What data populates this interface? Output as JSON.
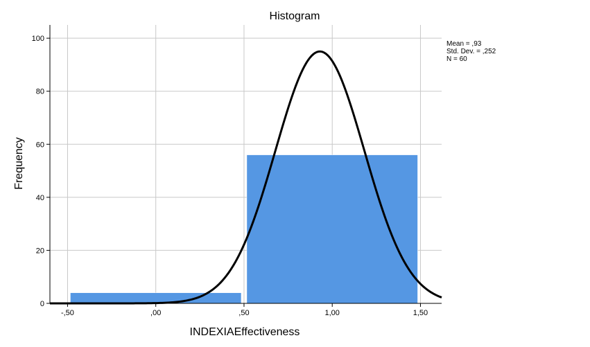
{
  "chart_data": {
    "type": "bar",
    "title": "Histogram",
    "xlabel": "INDEXIAEffectiveness",
    "ylabel": "Frequency",
    "xlim": [
      -0.6,
      1.62
    ],
    "ylim": [
      0,
      105
    ],
    "x_ticks": [
      -0.5,
      0.0,
      0.5,
      1.0,
      1.5
    ],
    "x_tick_labels": [
      "-,50",
      ",00",
      ",50",
      "1,00",
      "1,50"
    ],
    "y_ticks": [
      0,
      20,
      40,
      60,
      80,
      100
    ],
    "y_tick_labels": [
      "0",
      "20",
      "40",
      "60",
      "80",
      "100"
    ],
    "grid": true,
    "bins": [
      {
        "x0": -0.5,
        "x1": 0.5,
        "value": 4
      },
      {
        "x0": 0.5,
        "x1": 1.5,
        "value": 56
      }
    ],
    "normal_curve": {
      "mean": 0.93,
      "std": 0.252,
      "n": 60,
      "peak": 95
    },
    "stats": [
      "Mean = ,93",
      "Std. Dev. = ,252",
      "N = 60"
    ],
    "colors": {
      "bar": "#5597e3",
      "curve": "#000000",
      "grid": "#c8c8c8",
      "axis": "#000000"
    }
  }
}
